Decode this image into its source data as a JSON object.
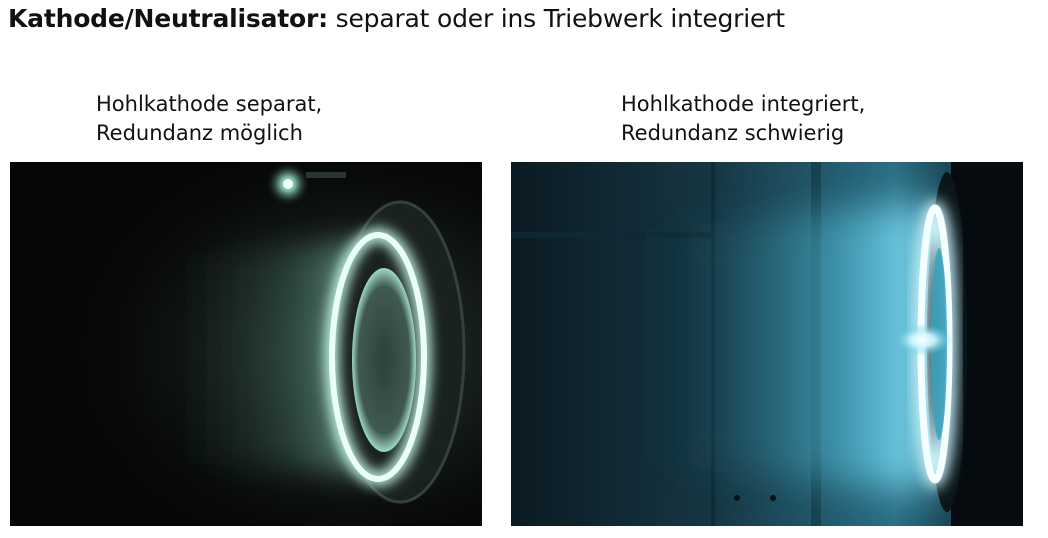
{
  "slide": {
    "title_bold": "Kathode/Neutralisator:",
    "title_rest": " separat oder ins Triebwerk integriert"
  },
  "panels": [
    {
      "caption_line1": "Hohlkathode separat,",
      "caption_line2": "Redundanz möglich"
    },
    {
      "caption_line1": "Hohlkathode integriert,",
      "caption_line2": "Redundanz schwierig"
    }
  ],
  "colors": {
    "left_plume": "#a8e8d4",
    "right_plume": "#5ed0e6",
    "background": "#ffffff"
  }
}
